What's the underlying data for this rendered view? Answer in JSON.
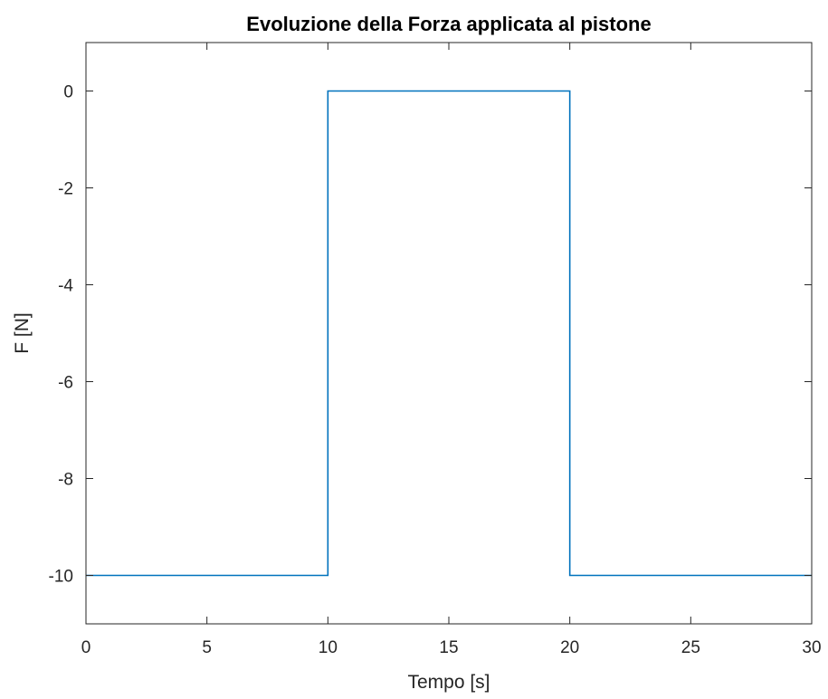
{
  "chart_data": {
    "type": "line",
    "title": "Evoluzione della Forza applicata al pistone",
    "xlabel": "Tempo [s]",
    "ylabel": "F [N]",
    "xlim": [
      0,
      30
    ],
    "ylim": [
      -11,
      1
    ],
    "xticks": [
      0,
      5,
      10,
      15,
      20,
      25,
      30
    ],
    "yticks": [
      0,
      -2,
      -4,
      -6,
      -8,
      -10
    ],
    "xtick_labels": [
      "0",
      "5",
      "10",
      "15",
      "20",
      "25",
      "30"
    ],
    "ytick_labels": [
      "0",
      "-2",
      "-4",
      "-6",
      "-8",
      "-10"
    ],
    "grid": false,
    "series": [
      {
        "color": "#0072BD",
        "x": [
          0,
          10,
          10,
          20,
          20,
          30
        ],
        "y": [
          -10,
          -10,
          0,
          0,
          -10,
          -10
        ]
      }
    ]
  }
}
